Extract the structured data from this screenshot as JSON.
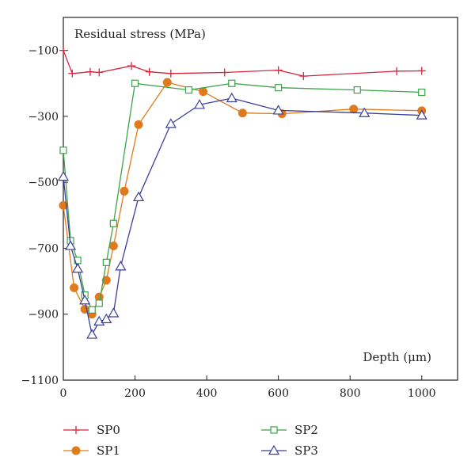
{
  "chart_data": {
    "type": "line",
    "ylabel": "Residual stress (MPa)",
    "xlabel": "Depth (μm)",
    "xlim": [
      0,
      1100
    ],
    "ylim": [
      -1100,
      0
    ],
    "x_ticks": [
      0,
      200,
      400,
      600,
      800,
      1000
    ],
    "y_ticks": [
      -100,
      -300,
      -500,
      -700,
      -900,
      -1100
    ],
    "grid": false,
    "legend_position": "bottom",
    "series": [
      {
        "name": "SP0",
        "color": "#d7263d",
        "marker": "plus",
        "points": [
          {
            "x": 0,
            "y": -100
          },
          {
            "x": 25,
            "y": -170
          },
          {
            "x": 75,
            "y": -165
          },
          {
            "x": 100,
            "y": -167
          },
          {
            "x": 190,
            "y": -147
          },
          {
            "x": 240,
            "y": -165
          },
          {
            "x": 300,
            "y": -170
          },
          {
            "x": 450,
            "y": -167
          },
          {
            "x": 600,
            "y": -160
          },
          {
            "x": 670,
            "y": -178
          },
          {
            "x": 930,
            "y": -163
          },
          {
            "x": 1000,
            "y": -162
          }
        ]
      },
      {
        "name": "SP1",
        "color": "#e07a1e",
        "marker": "circle",
        "points": [
          {
            "x": 0,
            "y": -570
          },
          {
            "x": 30,
            "y": -820
          },
          {
            "x": 60,
            "y": -885
          },
          {
            "x": 80,
            "y": -900
          },
          {
            "x": 100,
            "y": -848
          },
          {
            "x": 120,
            "y": -797
          },
          {
            "x": 140,
            "y": -693
          },
          {
            "x": 170,
            "y": -527
          },
          {
            "x": 210,
            "y": -325
          },
          {
            "x": 290,
            "y": -197
          },
          {
            "x": 390,
            "y": -225
          },
          {
            "x": 500,
            "y": -290
          },
          {
            "x": 610,
            "y": -292
          },
          {
            "x": 810,
            "y": -278
          },
          {
            "x": 1000,
            "y": -283
          }
        ]
      },
      {
        "name": "SP2",
        "color": "#3da349",
        "marker": "square",
        "points": [
          {
            "x": 0,
            "y": -403
          },
          {
            "x": 20,
            "y": -677
          },
          {
            "x": 40,
            "y": -737
          },
          {
            "x": 60,
            "y": -842
          },
          {
            "x": 80,
            "y": -887
          },
          {
            "x": 100,
            "y": -867
          },
          {
            "x": 120,
            "y": -743
          },
          {
            "x": 140,
            "y": -625
          },
          {
            "x": 200,
            "y": -200
          },
          {
            "x": 350,
            "y": -220
          },
          {
            "x": 470,
            "y": -200
          },
          {
            "x": 600,
            "y": -213
          },
          {
            "x": 820,
            "y": -220
          },
          {
            "x": 1000,
            "y": -227
          }
        ]
      },
      {
        "name": "SP3",
        "color": "#3a3f9a",
        "marker": "triangle",
        "points": [
          {
            "x": 0,
            "y": -483
          },
          {
            "x": 20,
            "y": -693
          },
          {
            "x": 40,
            "y": -762
          },
          {
            "x": 60,
            "y": -858
          },
          {
            "x": 80,
            "y": -962
          },
          {
            "x": 100,
            "y": -922
          },
          {
            "x": 120,
            "y": -915
          },
          {
            "x": 140,
            "y": -897
          },
          {
            "x": 160,
            "y": -755
          },
          {
            "x": 210,
            "y": -545
          },
          {
            "x": 300,
            "y": -323
          },
          {
            "x": 380,
            "y": -265
          },
          {
            "x": 470,
            "y": -245
          },
          {
            "x": 600,
            "y": -282
          },
          {
            "x": 840,
            "y": -290
          },
          {
            "x": 1000,
            "y": -297
          }
        ]
      }
    ]
  }
}
